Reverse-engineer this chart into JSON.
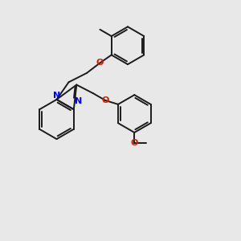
{
  "bg_color": "#e8e8e8",
  "bond_color": "#1a1a1a",
  "N_color": "#0000ee",
  "O_color": "#cc2200",
  "bond_width": 1.4,
  "figsize": [
    3.0,
    3.0
  ],
  "dpi": 100,
  "xlim": [
    0,
    10
  ],
  "ylim": [
    0,
    10
  ]
}
